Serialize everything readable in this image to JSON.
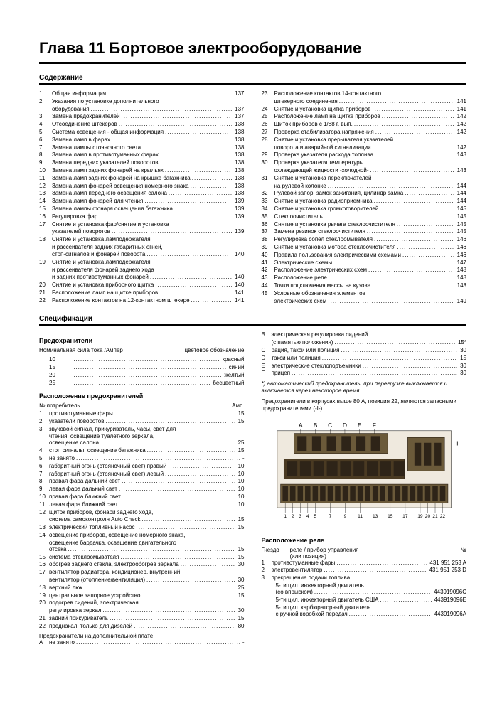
{
  "chapter_title": "Глава 11  Бортовое электрооборудование",
  "sections": {
    "contents": "Содержание",
    "specs": "Спецификации"
  },
  "toc_left": [
    {
      "n": "1",
      "t": "Общая информация",
      "p": "137"
    },
    {
      "n": "2",
      "t": "Указания по установке дополнительного",
      "t2": "оборудования",
      "p": "137"
    },
    {
      "n": "3",
      "t": "Замена предохранителей",
      "p": "137"
    },
    {
      "n": "4",
      "t": "Отсоединение штекеров",
      "p": "138"
    },
    {
      "n": "5",
      "t": "Система освещения - общая информация",
      "p": "138"
    },
    {
      "n": "6",
      "t": "Замена ламп в фарах",
      "p": "138"
    },
    {
      "n": "7",
      "t": "Замена лампы стояночного света",
      "p": "138"
    },
    {
      "n": "8",
      "t": "Замена ламп в противотуманных фарах",
      "p": "138"
    },
    {
      "n": "9",
      "t": "Замена передних указателей поворотов",
      "p": "138"
    },
    {
      "n": "10",
      "t": "Замена ламп задних фонарей на крыльях",
      "p": "138"
    },
    {
      "n": "11",
      "t": "Замена ламп задних фонарей на крышке багажника",
      "p": "138"
    },
    {
      "n": "12",
      "t": "Замена ламп фонарей освещения номерного знака",
      "p": "138"
    },
    {
      "n": "13",
      "t": "Замена ламп переднего освещения салона",
      "p": "138"
    },
    {
      "n": "14",
      "t": "Замена ламп фонарей для чтения",
      "p": "139"
    },
    {
      "n": "15",
      "t": "Замена лампы фонаря освещения багажника",
      "p": "139"
    },
    {
      "n": "16",
      "t": "Регулировка фар",
      "p": "139"
    },
    {
      "n": "17",
      "t": "Снятие и установка фар/снятие и установка",
      "t2": "указателей поворотов",
      "p": "139"
    },
    {
      "n": "18",
      "t": "Снятие и установка ламподержателя",
      "t2": "и рассеивателя задних габаритных огней,",
      "t3": "стоп-сигналов и фонарей поворота",
      "p": "140"
    },
    {
      "n": "19",
      "t": "Снятие и установка ламподержателя",
      "t2": "и рассеивателя фонарей заднего хода",
      "t3": "и задних противотуманных фонарей",
      "p": "140"
    },
    {
      "n": "20",
      "t": "Снятие и установка приборного щитка",
      "p": "140"
    },
    {
      "n": "21",
      "t": "Расположение ламп на щитке приборов",
      "p": "141"
    },
    {
      "n": "22",
      "t": "Расположение контактов на 12-контактном штекере",
      "p": "141"
    }
  ],
  "toc_right": [
    {
      "n": "23",
      "t": "Расположение контактов 14-контактного",
      "t2": "штекерного соединения",
      "p": "141"
    },
    {
      "n": "24",
      "t": "Снятие и установка щитка приборов",
      "p": "141"
    },
    {
      "n": "25",
      "t": "Расположение ламп на щитке приборов",
      "p": "142"
    },
    {
      "n": "26",
      "t": "Щиток приборов с 1/88 г. вып.",
      "p": "142"
    },
    {
      "n": "27",
      "t": "Проверка стабилизатора напряжения",
      "p": "142"
    },
    {
      "n": "28",
      "t": "Снятие и установка прерывателя указателей",
      "t2": "поворота и аварийной сигнализации",
      "p": "142"
    },
    {
      "n": "29",
      "t": "Проверка указателя расхода топлива",
      "p": "143"
    },
    {
      "n": "30",
      "t": "Проверка указателя температуры",
      "t2": "охлаждающей жидкости -холодной-",
      "p": "143"
    },
    {
      "n": "31",
      "t": "Снятие и установка переключателей",
      "t2": "на рулевой колонке",
      "p": "144"
    },
    {
      "n": "32",
      "t": "Рулевой запор, замок зажигания, цилиндр замка",
      "p": "144"
    },
    {
      "n": "33",
      "t": "Снятие и установка радиоприемника",
      "p": "144"
    },
    {
      "n": "34",
      "t": "Снятие и установка громкоговорителей",
      "p": "145"
    },
    {
      "n": "35",
      "t": "Стеклоочиститель",
      "p": "145"
    },
    {
      "n": "36",
      "t": "Снятие и установка рычага стеклоочистителя",
      "p": "145"
    },
    {
      "n": "37",
      "t": "Замена резинок стеклоочистителя",
      "p": "145"
    },
    {
      "n": "38",
      "t": "Регулировка сопел стеклоомывателя",
      "p": "146"
    },
    {
      "n": "39",
      "t": "Снятие и установка мотора стеклоочистителя",
      "p": "146"
    },
    {
      "n": "40",
      "t": "Правила пользования электрическими схемами",
      "p": "146"
    },
    {
      "n": "41",
      "t": "Электрические схемы",
      "p": "147"
    },
    {
      "n": "42",
      "t": "Расположение электрических схем",
      "p": "148"
    },
    {
      "n": "43",
      "t": "Расположение реле",
      "p": "148"
    },
    {
      "n": "44",
      "t": "Точки подключения массы на кузове",
      "p": "148"
    },
    {
      "n": "45",
      "t": "Условные обозначения элементов",
      "t2": "электрических схем",
      "p": "149"
    }
  ],
  "fuses": {
    "heading": "Предохранители",
    "header_left": "Номинальная сила тока /Ампер",
    "header_right": "цветовое обозначение",
    "rows": [
      {
        "a": "10",
        "c": "красный"
      },
      {
        "a": "15",
        "c": "синий"
      },
      {
        "a": "20",
        "c": "желтый"
      },
      {
        "a": "25",
        "c": "бесцветный"
      }
    ]
  },
  "fuse_layout": {
    "heading": "Расположение предохранителей",
    "col_l": "№ потребитель",
    "col_r": "Амп.",
    "rows": [
      {
        "n": "1",
        "t": "противотуманные фары",
        "p": "15"
      },
      {
        "n": "2",
        "t": "указатели поворотов",
        "p": "15"
      },
      {
        "n": "3",
        "t": "звуковой сигнал, прикуриватель, часы, свет для",
        "t2": "чтения, освещение туалетного зеркала,",
        "t3": "освещение салона",
        "p": "25"
      },
      {
        "n": "4",
        "t": "стоп сигналы, освещение багажника",
        "p": "15"
      },
      {
        "n": "5",
        "t": "не занято",
        "p": "-"
      },
      {
        "n": "6",
        "t": "габаритный огонь (стояночный свет) правый",
        "p": "10"
      },
      {
        "n": "7",
        "t": "габаритный огонь (стояночный свет) левый",
        "p": "10"
      },
      {
        "n": "8",
        "t": "правая фара дальний свет",
        "p": "10"
      },
      {
        "n": "9",
        "t": "левая фара дальний свет",
        "p": "10"
      },
      {
        "n": "10",
        "t": "правая фара ближний свет",
        "p": "10"
      },
      {
        "n": "11",
        "t": "левая фара ближний свет",
        "p": "10"
      },
      {
        "n": "12",
        "t": "щиток приборов, фонари заднего хода,",
        "t2": "система самоконтроля Auto Check",
        "p": "15"
      },
      {
        "n": "13",
        "t": "электрический топливный насос",
        "p": "15"
      },
      {
        "n": "14",
        "t": "освещение приборов, освещение номерного знака,",
        "t2": "освещение бардачка, освещение двигательного",
        "t3": "отсека",
        "p": "15"
      },
      {
        "n": "15",
        "t": "система стеклоомывателя",
        "p": "15"
      },
      {
        "n": "16",
        "t": "обогрев заднего стекла, электрообогрев зеркала",
        "p": "30"
      },
      {
        "n": "17",
        "t": "вентилятор радиатора, кондиционер, внутренний",
        "t2": "вентилятор (отопление/вентиляция)",
        "p": "30"
      },
      {
        "n": "18",
        "t": "верхний люк",
        "p": "25"
      },
      {
        "n": "19",
        "t": "центральное запорное устройство",
        "p": "15"
      },
      {
        "n": "20",
        "t": "подогрев сидений, электрическая",
        "t2": "регулировка зеркал",
        "p": "30"
      },
      {
        "n": "21",
        "t": "задний прикуриватель",
        "p": "15"
      },
      {
        "n": "22",
        "t": "преднакал, только для дизелей",
        "p": "80"
      }
    ],
    "footer": "Предохранители на дополнительной плате",
    "footer_row": {
      "n": "A",
      "t": "не занято",
      "p": "-"
    }
  },
  "extra_right": [
    {
      "n": "B",
      "t": "электрическая регулировка сидений",
      "t2": "(с памятью положения)",
      "p": "15*"
    },
    {
      "n": "C",
      "t": "рация, такси или полиция",
      "p": "30"
    },
    {
      "n": "D",
      "t": "такси или полиция",
      "p": "15"
    },
    {
      "n": "E",
      "t": "электрические стеклоподъемники",
      "p": "30"
    },
    {
      "n": "F",
      "t": "прицеп",
      "p": "30"
    }
  ],
  "note_italic": "*) автоматический предохранитель, при перегрузке выключается и включается через некоторое время",
  "note2": "Предохранители в корпусах выше 80 А, позиция 22, являются запасными предохранителями (-I-).",
  "diagram": {
    "top_labels": [
      "A",
      "B",
      "C",
      "D",
      "E",
      "F"
    ],
    "right_label": "I",
    "bottom_labels": [
      "1",
      "2",
      "3",
      "4",
      "5",
      "7",
      "9",
      "11",
      "13",
      "15",
      "17",
      "19",
      "20",
      "21",
      "22"
    ],
    "colors": {
      "board": "#6b5a3a",
      "slot": "#2e2418",
      "bg": "#efe9de",
      "rail": "#4a3a22",
      "screw": "#8a7a58"
    }
  },
  "relay": {
    "heading": "Расположение реле",
    "col1": "Гнездо",
    "col2": "реле / прибор управления",
    "col3": "№",
    "col_parenth": "(или позиция)",
    "rows": [
      {
        "n": "1",
        "t": "противотуманные фары",
        "p": "431 951 253 A"
      },
      {
        "n": "2",
        "t": "электровентилятор",
        "p": "431 951 253 D"
      },
      {
        "n": "3",
        "t": "прекращение подачи топлива",
        "p": ""
      }
    ],
    "sub": [
      {
        "t": "5-ти цил. инжекторный двигатель",
        "t2": "(со впрыском)",
        "p": "443919096C"
      },
      {
        "t": "5-ти цил. инжекторный двигатель США",
        "p": "443919096E"
      },
      {
        "t": "5-ти цил. карбюраторный двигатель",
        "t2": "с ручной коробкой передач",
        "p": "443919096A"
      }
    ]
  }
}
